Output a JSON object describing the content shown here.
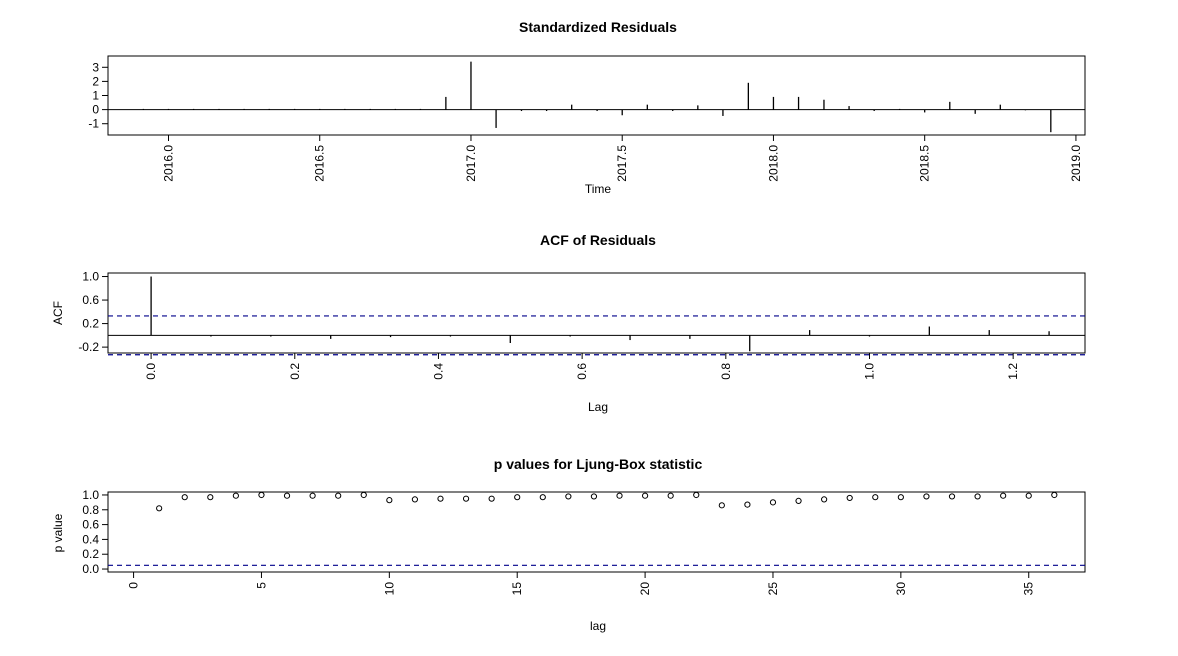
{
  "chart_data": [
    {
      "type": "line",
      "title": "Standardized Residuals",
      "xlabel": "Time",
      "ylabel": "",
      "xlim": [
        2015.8,
        2019.03
      ],
      "ylim": [
        -1.8,
        3.8
      ],
      "x_ticks": [
        "2016.0",
        "2016.5",
        "2017.0",
        "2017.5",
        "2018.0",
        "2018.5",
        "2019.0"
      ],
      "y_ticks": [
        "-1",
        "0",
        "1",
        "2",
        "3"
      ],
      "baseline": 0,
      "x": [
        2015.917,
        2016.0,
        2016.083,
        2016.167,
        2016.25,
        2016.333,
        2016.417,
        2016.5,
        2016.583,
        2016.667,
        2016.75,
        2016.833,
        2016.917,
        2017.0,
        2017.083,
        2017.167,
        2017.25,
        2017.333,
        2017.417,
        2017.5,
        2017.583,
        2017.667,
        2017.75,
        2017.833,
        2017.917,
        2018.0,
        2018.083,
        2018.167,
        2018.25,
        2018.333,
        2018.417,
        2018.5,
        2018.583,
        2018.667,
        2018.75,
        2018.833,
        2018.917
      ],
      "values": [
        0.05,
        0.05,
        0.05,
        0.05,
        0.05,
        0.05,
        0.05,
        0.05,
        0.05,
        0.05,
        0.05,
        0.05,
        0.9,
        3.4,
        -1.3,
        -0.1,
        -0.1,
        0.35,
        -0.1,
        -0.4,
        0.35,
        -0.1,
        0.3,
        -0.45,
        1.9,
        0.9,
        0.9,
        0.7,
        0.25,
        -0.1,
        0.05,
        -0.2,
        0.55,
        -0.3,
        0.35,
        -0.05,
        -1.6
      ]
    },
    {
      "type": "bar",
      "title": "ACF of Residuals",
      "xlabel": "Lag",
      "ylabel": "ACF",
      "xlim": [
        -0.06,
        1.3
      ],
      "ylim": [
        -0.3,
        1.06
      ],
      "x_ticks": [
        "0.0",
        "0.2",
        "0.4",
        "0.6",
        "0.8",
        "1.0",
        "1.2"
      ],
      "y_ticks": [
        "-0.2",
        "0.2",
        "0.6",
        "1.0"
      ],
      "confidence_bound": 0.33,
      "baseline": 0,
      "x": [
        0.0,
        0.0833,
        0.1667,
        0.25,
        0.3333,
        0.4167,
        0.5,
        0.5833,
        0.6667,
        0.75,
        0.8333,
        0.9167,
        1.0,
        1.0833,
        1.1667,
        1.25
      ],
      "values": [
        1.0,
        -0.02,
        -0.02,
        -0.06,
        -0.03,
        -0.02,
        -0.13,
        -0.02,
        -0.08,
        -0.06,
        -0.27,
        0.09,
        -0.02,
        0.15,
        0.09,
        0.07
      ]
    },
    {
      "type": "scatter",
      "title": "p values for Ljung-Box statistic",
      "xlabel": "lag",
      "ylabel": "p value",
      "xlim": [
        -1,
        37.2
      ],
      "ylim": [
        -0.04,
        1.04
      ],
      "x_ticks": [
        "0",
        "5",
        "10",
        "15",
        "20",
        "25",
        "30",
        "35"
      ],
      "y_ticks": [
        "0.0",
        "0.2",
        "0.4",
        "0.6",
        "0.8",
        "1.0"
      ],
      "threshold": 0.05,
      "x": [
        1,
        2,
        3,
        4,
        5,
        6,
        7,
        8,
        9,
        10,
        11,
        12,
        13,
        14,
        15,
        16,
        17,
        18,
        19,
        20,
        21,
        22,
        23,
        24,
        25,
        26,
        27,
        28,
        29,
        30,
        31,
        32,
        33,
        34,
        35,
        36
      ],
      "values": [
        0.82,
        0.97,
        0.97,
        0.99,
        1.0,
        0.99,
        0.99,
        0.99,
        1.0,
        0.93,
        0.94,
        0.95,
        0.95,
        0.95,
        0.97,
        0.97,
        0.98,
        0.98,
        0.99,
        0.99,
        0.99,
        1.0,
        0.86,
        0.87,
        0.9,
        0.92,
        0.94,
        0.96,
        0.97,
        0.97,
        0.98,
        0.98,
        0.98,
        0.99,
        0.99,
        1.0
      ]
    }
  ],
  "colors": {
    "axis": "#000000",
    "bound_line": "#00008b"
  }
}
